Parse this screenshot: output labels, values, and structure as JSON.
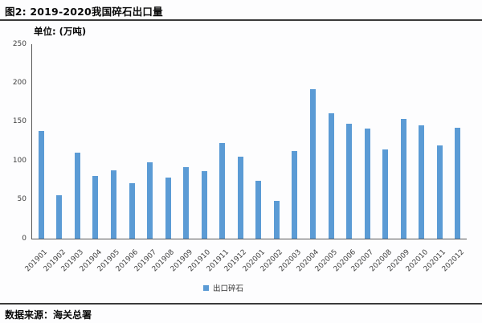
{
  "header": {
    "title": "图2:  2019-2020我国碎石出口量"
  },
  "unit_label": "单位:  (万吨)",
  "chart_data": {
    "type": "bar",
    "title": "2019-2020我国碎石出口量",
    "xlabel": "",
    "ylabel": "万吨",
    "categories": [
      "201901",
      "201902",
      "201903",
      "201904",
      "201905",
      "201906",
      "201907",
      "201908",
      "201909",
      "201910",
      "201911",
      "201912",
      "202001",
      "202002",
      "202003",
      "202004",
      "202005",
      "202006",
      "202007",
      "202008",
      "202009",
      "202010",
      "202011",
      "202012"
    ],
    "values": [
      138,
      56,
      111,
      81,
      88,
      71,
      98,
      79,
      92,
      87,
      123,
      105,
      74,
      49,
      113,
      192,
      161,
      148,
      142,
      115,
      154,
      146,
      120,
      143
    ],
    "series_name": "出口碎石",
    "ylim": [
      0,
      250
    ],
    "yticks": [
      0,
      50,
      100,
      150,
      200,
      250
    ],
    "bar_color": "#5B9BD5",
    "grid": false,
    "legend_position": "bottom"
  },
  "legend": {
    "label": "出口碎石",
    "swatch_color": "#5B9BD5"
  },
  "footer": {
    "source": "数据来源：海关总署"
  },
  "colors": {
    "bar": "#5B9BD5",
    "axis": "#595959",
    "rule": "#3b3b3b",
    "tick_text": "#3f3f3f"
  }
}
